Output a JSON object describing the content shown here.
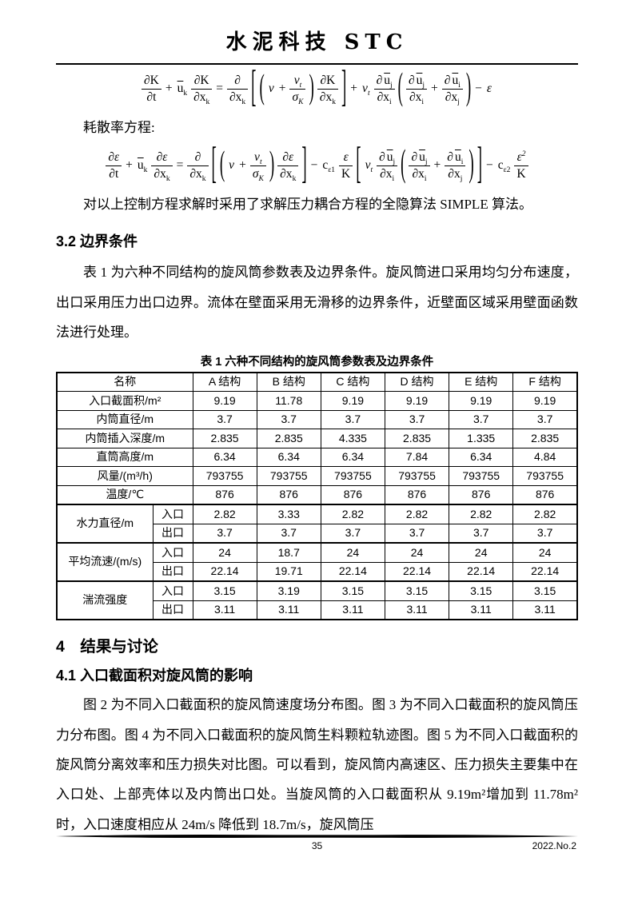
{
  "header": {
    "journal_title": "水泥科技 STC"
  },
  "equations": {
    "dissipation_label": "耗散率方程:",
    "k_equation": {
      "tokens": [
        {
          "f": [
            [
              {
                "s": "∂K"
              }
            ],
            [
              {
                "s": "∂t"
              }
            ]
          ]
        },
        {
          "x": [
            {
              "s": "+"
            }
          ]
        },
        {
          "x": [
            {
              "s": "u",
              "o": 1,
              "sub": "k"
            }
          ]
        },
        {
          "f": [
            [
              {
                "s": "∂K"
              }
            ],
            [
              {
                "s": "∂x",
                "sub": "k"
              }
            ]
          ]
        },
        {
          "x": [
            {
              "s": "="
            }
          ]
        },
        {
          "f": [
            [
              {
                "s": "∂"
              }
            ],
            [
              {
                "s": "∂x",
                "sub": "k"
              }
            ]
          ]
        },
        {
          "fence": "[",
          "h": 2.9
        },
        {
          "fence": "(",
          "h": 2.3
        },
        {
          "x": [
            {
              "s": "ν",
              "i": 1
            }
          ]
        },
        {
          "x": [
            {
              "s": "+"
            }
          ]
        },
        {
          "f": [
            [
              {
                "s": "ν",
                "i": 1,
                "sub": "t"
              }
            ],
            [
              {
                "s": "σ",
                "i": 1,
                "sub": "K"
              }
            ]
          ]
        },
        {
          "fence": ")",
          "h": 2.3
        },
        {
          "f": [
            [
              {
                "s": "∂K"
              }
            ],
            [
              {
                "s": "∂x",
                "sub": "k"
              }
            ]
          ]
        },
        {
          "fence": "]",
          "h": 2.9
        },
        {
          "x": [
            {
              "s": "+"
            }
          ]
        },
        {
          "x": [
            {
              "s": "ν",
              "i": 1,
              "sub": "t"
            }
          ]
        },
        {
          "f": [
            [
              {
                "s": "∂"
              },
              {
                "s": "u",
                "o": 1,
                "sub": "j"
              }
            ],
            [
              {
                "s": "∂x",
                "sub": "i"
              }
            ]
          ]
        },
        {
          "fence": "(",
          "h": 2.5
        },
        {
          "f": [
            [
              {
                "s": "∂"
              },
              {
                "s": "u",
                "o": 1,
                "sub": "j"
              }
            ],
            [
              {
                "s": "∂x",
                "sub": "i"
              }
            ]
          ]
        },
        {
          "x": [
            {
              "s": "+"
            }
          ]
        },
        {
          "f": [
            [
              {
                "s": "∂"
              },
              {
                "s": "u",
                "o": 1,
                "sub": "i"
              }
            ],
            [
              {
                "s": "∂x",
                "sub": "j"
              }
            ]
          ]
        },
        {
          "fence": ")",
          "h": 2.5
        },
        {
          "x": [
            {
              "s": "−"
            }
          ]
        },
        {
          "x": [
            {
              "s": "ε",
              "i": 1
            }
          ]
        }
      ]
    },
    "epsilon_equation": {
      "tokens": [
        {
          "f": [
            [
              {
                "s": "∂ε",
                "i": 1
              }
            ],
            [
              {
                "s": "∂t"
              }
            ]
          ]
        },
        {
          "x": [
            {
              "s": "+"
            }
          ]
        },
        {
          "x": [
            {
              "s": "u",
              "o": 1,
              "sub": "k"
            }
          ]
        },
        {
          "f": [
            [
              {
                "s": "∂ε",
                "i": 1
              }
            ],
            [
              {
                "s": "∂x",
                "sub": "k"
              }
            ]
          ]
        },
        {
          "x": [
            {
              "s": "="
            }
          ]
        },
        {
          "f": [
            [
              {
                "s": "∂"
              }
            ],
            [
              {
                "s": "∂x",
                "sub": "k"
              }
            ]
          ]
        },
        {
          "fence": "[",
          "h": 2.9
        },
        {
          "fence": "(",
          "h": 2.3
        },
        {
          "x": [
            {
              "s": "ν",
              "i": 1
            }
          ]
        },
        {
          "x": [
            {
              "s": "+"
            }
          ]
        },
        {
          "f": [
            [
              {
                "s": "ν",
                "i": 1,
                "sub": "t"
              }
            ],
            [
              {
                "s": "σ",
                "i": 1,
                "sub": "K"
              }
            ]
          ]
        },
        {
          "fence": ")",
          "h": 2.3
        },
        {
          "f": [
            [
              {
                "s": "∂ε",
                "i": 1
              }
            ],
            [
              {
                "s": "∂x",
                "sub": "k"
              }
            ]
          ]
        },
        {
          "fence": "]",
          "h": 2.9
        },
        {
          "x": [
            {
              "s": "−"
            }
          ]
        },
        {
          "x": [
            {
              "s": "c",
              "sub": "ε1"
            }
          ]
        },
        {
          "f": [
            [
              {
                "s": "ε",
                "i": 1
              }
            ],
            [
              {
                "s": "K"
              }
            ]
          ]
        },
        {
          "fence": "[",
          "h": 2.9
        },
        {
          "x": [
            {
              "s": "ν",
              "i": 1,
              "sub": "t"
            }
          ]
        },
        {
          "f": [
            [
              {
                "s": "∂"
              },
              {
                "s": "u",
                "o": 1,
                "sub": "j"
              }
            ],
            [
              {
                "s": "∂x",
                "sub": "i"
              }
            ]
          ]
        },
        {
          "fence": "(",
          "h": 2.5
        },
        {
          "f": [
            [
              {
                "s": "∂"
              },
              {
                "s": "u",
                "o": 1,
                "sub": "j"
              }
            ],
            [
              {
                "s": "∂x",
                "sub": "i"
              }
            ]
          ]
        },
        {
          "x": [
            {
              "s": "+"
            }
          ]
        },
        {
          "f": [
            [
              {
                "s": "∂"
              },
              {
                "s": "u",
                "o": 1,
                "sub": "i"
              }
            ],
            [
              {
                "s": "∂x",
                "sub": "j"
              }
            ]
          ]
        },
        {
          "fence": ")",
          "h": 2.5
        },
        {
          "fence": "]",
          "h": 2.9
        },
        {
          "x": [
            {
              "s": "−"
            }
          ]
        },
        {
          "x": [
            {
              "s": "c",
              "sub": "ε2"
            }
          ]
        },
        {
          "f": [
            [
              {
                "s": "ε",
                "i": 1,
                "sup": "2"
              }
            ],
            [
              {
                "s": "K"
              }
            ]
          ]
        }
      ]
    }
  },
  "paragraphs": {
    "simple_algorithm": "对以上控制方程求解时采用了求解压力耦合方程的全隐算法 SIMPLE 算法。"
  },
  "sections": {
    "boundary": {
      "title": "3.2 边界条件",
      "body": "表 1 为六种不同结构的旋风筒参数表及边界条件。旋风筒进口采用均匀分布速度，出口采用压力出口边界。流体在壁面采用无滑移的边界条件，近壁面区域采用壁面函数法进行处理。"
    },
    "results": {
      "title": "4　结果与讨论"
    },
    "inlet": {
      "title": "4.1 入口截面积对旋风筒的影响",
      "body": "图 2 为不同入口截面积的旋风筒速度场分布图。图 3 为不同入口截面积的旋风筒压力分布图。图 4 为不同入口截面积的旋风筒生料颗粒轨迹图。图 5 为不同入口截面积的旋风筒分离效率和压力损失对比图。可以看到，旋风筒内高速区、压力损失主要集中在入口处、上部壳体以及内筒出口处。当旋风筒的入口截面积从 9.19m²增加到 11.78m²时，入口速度相应从 24m/s 降低到 18.7m/s，旋风筒压"
    }
  },
  "table": {
    "caption": "表 1 六种不同结构的旋风筒参数表及边界条件",
    "columns": [
      "名称",
      "A 结构",
      "B 结构",
      "C 结构",
      "D 结构",
      "E 结构",
      "F 结构"
    ],
    "rows": [
      {
        "label": "入口截面积/m²",
        "values": [
          "9.19",
          "11.78",
          "9.19",
          "9.19",
          "9.19",
          "9.19"
        ]
      },
      {
        "label": "内筒直径/m",
        "values": [
          "3.7",
          "3.7",
          "3.7",
          "3.7",
          "3.7",
          "3.7"
        ]
      },
      {
        "label": "内筒插入深度/m",
        "values": [
          "2.835",
          "2.835",
          "4.335",
          "2.835",
          "1.335",
          "2.835"
        ]
      },
      {
        "label": "直筒高度/m",
        "values": [
          "6.34",
          "6.34",
          "6.34",
          "7.84",
          "6.34",
          "4.84"
        ]
      },
      {
        "label": "风量/(m³/h)",
        "values": [
          "793755",
          "793755",
          "793755",
          "793755",
          "793755",
          "793755"
        ]
      },
      {
        "label": "温度/℃",
        "values": [
          "876",
          "876",
          "876",
          "876",
          "876",
          "876"
        ]
      },
      {
        "label": "水力直径/m",
        "sub": [
          {
            "name": "入口",
            "values": [
              "2.82",
              "3.33",
              "2.82",
              "2.82",
              "2.82",
              "2.82"
            ]
          },
          {
            "name": "出口",
            "values": [
              "3.7",
              "3.7",
              "3.7",
              "3.7",
              "3.7",
              "3.7"
            ]
          }
        ]
      },
      {
        "label": "平均流速/(m/s)",
        "sub": [
          {
            "name": "入口",
            "values": [
              "24",
              "18.7",
              "24",
              "24",
              "24",
              "24"
            ]
          },
          {
            "name": "出口",
            "values": [
              "22.14",
              "19.71",
              "22.14",
              "22.14",
              "22.14",
              "22.14"
            ]
          }
        ]
      },
      {
        "label": "湍流强度",
        "sub": [
          {
            "name": "入口",
            "values": [
              "3.15",
              "3.19",
              "3.15",
              "3.15",
              "3.15",
              "3.15"
            ]
          },
          {
            "name": "出口",
            "values": [
              "3.11",
              "3.11",
              "3.11",
              "3.11",
              "3.11",
              "3.11"
            ]
          }
        ]
      }
    ]
  },
  "footer": {
    "page_number": "35",
    "issue": "2022.No.2"
  }
}
